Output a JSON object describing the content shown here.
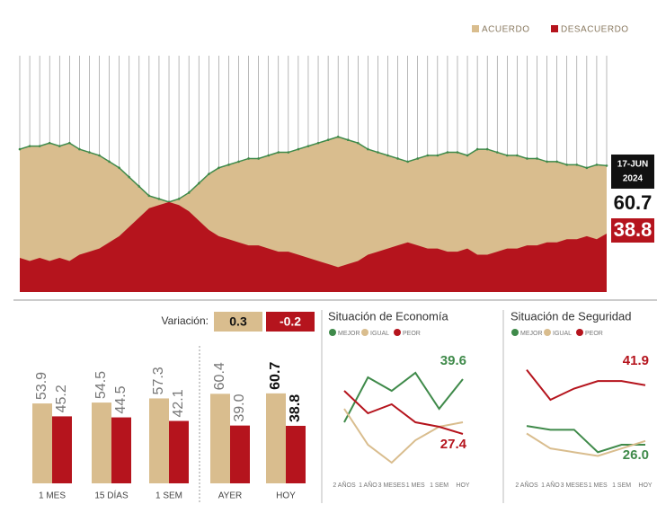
{
  "chart_data": [
    {
      "type": "area",
      "legend_position": "top-right",
      "series": [
        {
          "name": "ACUERDO",
          "color": "#d9bd8e",
          "line_color": "#3f8a4a",
          "values": [
            66,
            67,
            67,
            68,
            67,
            68,
            66,
            65,
            64,
            62,
            60,
            57,
            54,
            51,
            50,
            49,
            50,
            52,
            55,
            58,
            60,
            61,
            62,
            63,
            63,
            64,
            65,
            65,
            66,
            67,
            68,
            69,
            70,
            69,
            68,
            66,
            65,
            64,
            63,
            62,
            63,
            64,
            64,
            65,
            65,
            64,
            66,
            66,
            65,
            64,
            64,
            63,
            63,
            62,
            62,
            61,
            61,
            60,
            61,
            60.7
          ]
        },
        {
          "name": "DESACUERDO",
          "color": "#b5141d",
          "values": [
            31,
            30,
            31,
            30,
            31,
            30,
            32,
            33,
            34,
            36,
            38,
            41,
            44,
            47,
            48,
            49,
            48,
            46,
            43,
            40,
            38,
            37,
            36,
            35,
            35,
            34,
            33,
            33,
            32,
            31,
            30,
            29,
            28,
            29,
            30,
            32,
            33,
            34,
            35,
            36,
            35,
            34,
            34,
            33,
            33,
            34,
            32,
            32,
            33,
            34,
            34,
            35,
            35,
            36,
            36,
            37,
            37,
            38,
            37,
            38.8
          ]
        }
      ],
      "ylim": [
        20,
        75
      ],
      "date_lines": [
        "17-JUN",
        "2024"
      ]
    },
    {
      "type": "bar",
      "variation_label": "Variación:",
      "variation": [
        0.3,
        -0.2
      ],
      "categories": [
        "1 MES",
        "15 DÍAS",
        "1 SEM",
        "AYER",
        "HOY"
      ],
      "series": [
        {
          "name": "ACUERDO",
          "color": "#d9bd8e",
          "values": [
            53.9,
            54.5,
            57.3,
            60.4,
            60.7
          ],
          "value_labels": [
            "53.9",
            "54.5",
            "57.3",
            "60.4",
            "60.7"
          ]
        },
        {
          "name": "DESACUERDO",
          "color": "#b5141d",
          "values": [
            45.2,
            44.5,
            42.1,
            39.0,
            38.8
          ],
          "value_labels": [
            "45.2",
            "44.5",
            "42.1",
            "39.0",
            "38.8"
          ]
        }
      ],
      "ylim": [
        0,
        80
      ]
    },
    {
      "type": "line",
      "title": "Situación de Economía",
      "categories": [
        "2 AÑOS",
        "1 AÑO",
        "3 MESES",
        "1 MES",
        "1 SEM",
        "HOY"
      ],
      "series": [
        {
          "name": "MEJOR",
          "color": "#3f8a4a",
          "values": [
            30,
            40,
            37,
            41,
            33,
            39.6
          ]
        },
        {
          "name": "IGUAL",
          "color": "#d9bd8e",
          "values": [
            33,
            25,
            21,
            26,
            29,
            30
          ]
        },
        {
          "name": "PEOR",
          "color": "#b5141d",
          "values": [
            37,
            32,
            34,
            30,
            29,
            27.4
          ]
        }
      ],
      "ylim": [
        20,
        45
      ]
    },
    {
      "type": "line",
      "title": "Situación de Seguridad",
      "categories": [
        "2 AÑOS",
        "1 AÑO",
        "3 MESES",
        "1 MES",
        "1 SEM",
        "HOY"
      ],
      "series": [
        {
          "name": "MEJOR",
          "color": "#3f8a4a",
          "values": [
            31,
            30,
            30,
            24,
            26,
            26.0
          ],
          "value_labels": [
            null,
            null,
            null,
            null,
            null,
            "26.0"
          ]
        },
        {
          "name": "IGUAL",
          "color": "#d9bd8e",
          "values": [
            29,
            25,
            24,
            23,
            25,
            27
          ]
        },
        {
          "name": "PEOR",
          "color": "#b5141d",
          "values": [
            46,
            38,
            41,
            43,
            43,
            41.9
          ]
        }
      ],
      "ylim": [
        20,
        50
      ]
    }
  ]
}
